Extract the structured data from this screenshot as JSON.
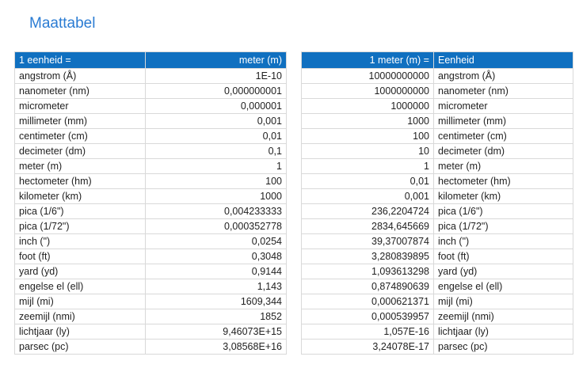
{
  "page": {
    "title": "Maattabel"
  },
  "colors": {
    "title_text": "#2B7CD3",
    "header_bg": "#1070C0",
    "header_text": "#FFFFFF",
    "cell_border": "#D9D9D9",
    "body_text": "#1F1F1F",
    "page_bg": "#FFFFFF"
  },
  "tables": [
    {
      "name": "eenheid-naar-meter",
      "headers": [
        "1 eenheid =",
        "meter (m)"
      ],
      "align": [
        "left",
        "right"
      ],
      "rows": [
        [
          "angstrom (Å)",
          "1E-10"
        ],
        [
          "nanometer (nm)",
          "0,000000001"
        ],
        [
          "micrometer",
          "0,000001"
        ],
        [
          "millimeter (mm)",
          "0,001"
        ],
        [
          "centimeter (cm)",
          "0,01"
        ],
        [
          "decimeter (dm)",
          "0,1"
        ],
        [
          "meter (m)",
          "1"
        ],
        [
          "hectometer (hm)",
          "100"
        ],
        [
          "kilometer (km)",
          "1000"
        ],
        [
          "pica (1/6\")",
          "0,004233333"
        ],
        [
          "pica (1/72\")",
          "0,000352778"
        ],
        [
          "inch (\")",
          "0,0254"
        ],
        [
          "foot (ft)",
          "0,3048"
        ],
        [
          "yard (yd)",
          "0,9144"
        ],
        [
          "engelse el (ell)",
          "1,143"
        ],
        [
          "mijl (mi)",
          "1609,344"
        ],
        [
          "zeemijl (nmi)",
          "1852"
        ],
        [
          "lichtjaar (ly)",
          "9,46073E+15"
        ],
        [
          "parsec (pc)",
          "3,08568E+16"
        ]
      ]
    },
    {
      "name": "meter-naar-eenheid",
      "headers": [
        "1 meter (m) =",
        "Eenheid"
      ],
      "align": [
        "right",
        "left"
      ],
      "rows": [
        [
          "10000000000",
          "angstrom (Å)"
        ],
        [
          "1000000000",
          "nanometer (nm)"
        ],
        [
          "1000000",
          "micrometer"
        ],
        [
          "1000",
          "millimeter (mm)"
        ],
        [
          "100",
          "centimeter (cm)"
        ],
        [
          "10",
          "decimeter (dm)"
        ],
        [
          "1",
          "meter (m)"
        ],
        [
          "0,01",
          "hectometer (hm)"
        ],
        [
          "0,001",
          "kilometer (km)"
        ],
        [
          "236,2204724",
          "pica (1/6\")"
        ],
        [
          "2834,645669",
          "pica (1/72\")"
        ],
        [
          "39,37007874",
          "inch (\")"
        ],
        [
          "3,280839895",
          "foot (ft)"
        ],
        [
          "1,093613298",
          "yard (yd)"
        ],
        [
          "0,874890639",
          "engelse el (ell)"
        ],
        [
          "0,000621371",
          "mijl (mi)"
        ],
        [
          "0,000539957",
          "zeemijl (nmi)"
        ],
        [
          "1,057E-16",
          "lichtjaar (ly)"
        ],
        [
          "3,24078E-17",
          "parsec (pc)"
        ]
      ]
    }
  ]
}
